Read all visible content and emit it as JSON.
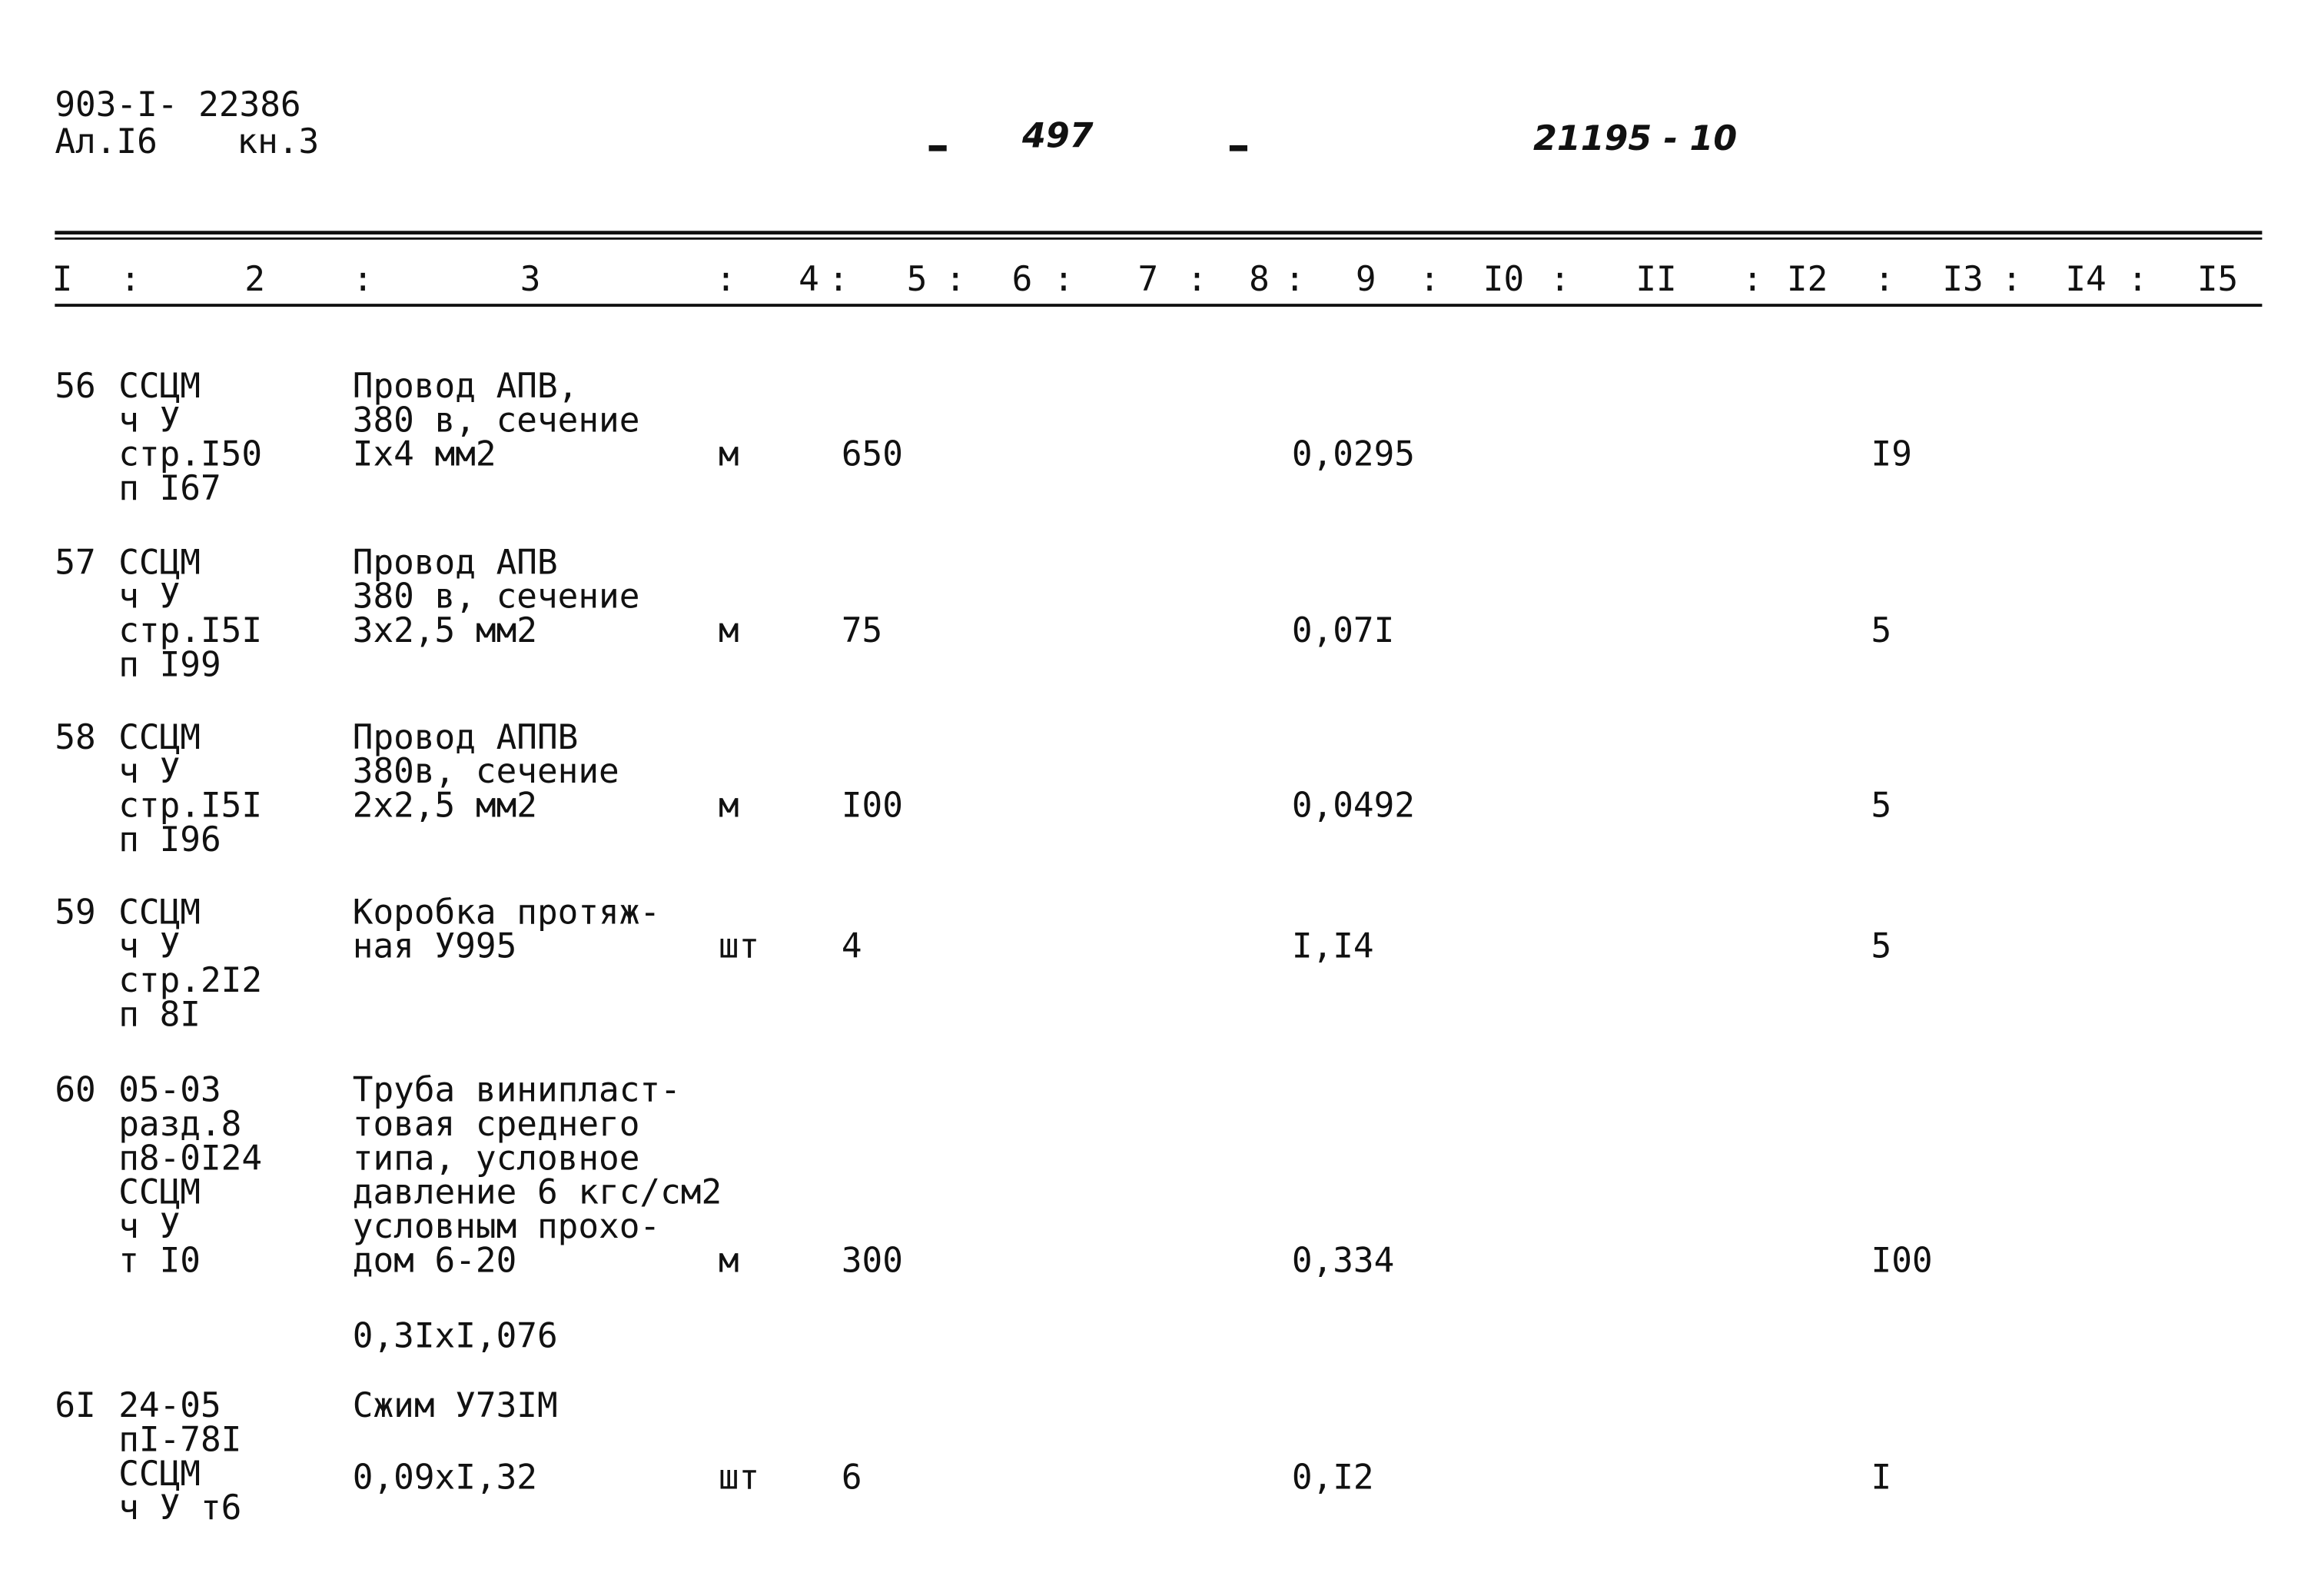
{
  "header": {
    "doc_code": "903-I- 22386",
    "album": "Ал.I6",
    "book": "кн.3",
    "page_number": "497",
    "sheet": "21195 - 10"
  },
  "columns": [
    "I",
    ":",
    "2",
    ":",
    "3",
    ":",
    "4",
    ":",
    "5",
    ":",
    "6",
    ":",
    "7",
    ":",
    "8",
    ":",
    "9",
    ":",
    "I0",
    ":",
    "II",
    ":",
    "I2",
    ":",
    "I3",
    ":",
    "I4",
    ":",
    "I5"
  ],
  "rows": [
    {
      "num": "56",
      "code": [
        "ССЦМ",
        "ч У",
        "стр.I50",
        "п I67"
      ],
      "description": [
        "Провод АПВ,",
        "380 в, сечение",
        "Iх4 мм2"
      ],
      "unit": "м",
      "quantity": "650",
      "col9": "0,0295",
      "col13": "I9"
    },
    {
      "num": "57",
      "code": [
        "ССЦМ",
        "ч У",
        "стр.I5I",
        "п I99"
      ],
      "description": [
        "Провод АПВ",
        "380 в, сечение",
        "3х2,5 мм2"
      ],
      "unit": "м",
      "quantity": "75",
      "col9": "0,07I",
      "col13": "5"
    },
    {
      "num": "58",
      "code": [
        "ССЦМ",
        "ч У",
        "стр.I5I",
        "п I96"
      ],
      "description": [
        "Провод АППВ",
        "380в, сечение",
        "2х2,5 мм2"
      ],
      "unit": "м",
      "quantity": "I00",
      "col9": "0,0492",
      "col13": "5"
    },
    {
      "num": "59",
      "code": [
        "ССЦМ",
        "ч У",
        "стр.2I2",
        "п 8I"
      ],
      "description": [
        "Коробка протяж-",
        "ная У995"
      ],
      "unit": "шт",
      "quantity": "4",
      "col9": "I,I4",
      "col13": "5"
    },
    {
      "num": "60",
      "code": [
        "05-03",
        "разд.8",
        "п8-0I24",
        "ССЦМ",
        "ч У",
        "т I0"
      ],
      "description": [
        "Труба винипласт-",
        "товая среднего",
        "типа, условное",
        "давление 6 кгс/см2",
        "условным прохо-",
        "дом 6-20"
      ],
      "unit": "м",
      "quantity": "300",
      "col9": "0,334",
      "col13": "I00",
      "note": "0,3IxI,076"
    },
    {
      "num": "6I",
      "code": [
        "24-05",
        "пI-78I",
        "ССЦМ",
        "ч У т6"
      ],
      "description": [
        "Сжим У73IМ"
      ],
      "unit": "шт",
      "quantity": "6",
      "col9": "0,I2",
      "col13": "I",
      "note": "0,09xI,32"
    }
  ]
}
